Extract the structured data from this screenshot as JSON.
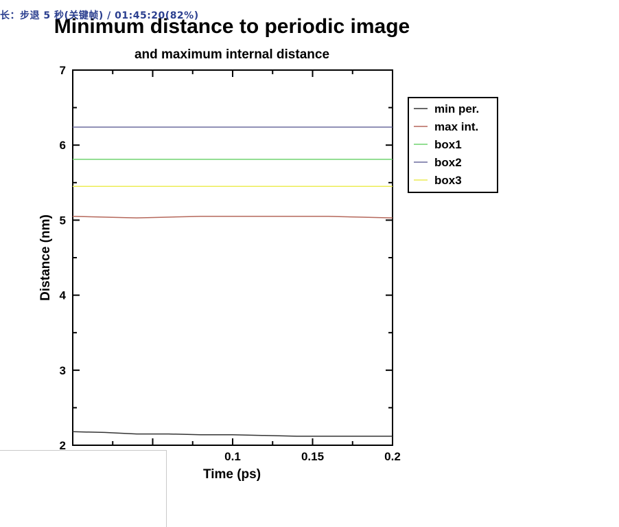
{
  "overlay": {
    "text": "长：步退 5 秒(关键帧) / 01:45:20(82%)"
  },
  "chart_data": {
    "type": "line",
    "title": "Minimum distance to periodic image",
    "subtitle": "and maximum internal distance",
    "xlabel": "Time (ps)",
    "ylabel": "Distance (nm)",
    "xlim": [
      0,
      0.2
    ],
    "ylim": [
      2,
      7
    ],
    "x_ticks": [
      0.1,
      0.15,
      0.2
    ],
    "x_tick_labels": [
      "0.1",
      "0.15",
      "0.2"
    ],
    "y_ticks": [
      2,
      3,
      4,
      5,
      6,
      7
    ],
    "y_tick_labels": [
      "2",
      "3",
      "4",
      "5",
      "6",
      "7"
    ],
    "grid": false,
    "legend_position": "right",
    "series": [
      {
        "name": "min per.",
        "color": "#333333",
        "x": [
          0,
          0.02,
          0.04,
          0.06,
          0.08,
          0.1,
          0.12,
          0.14,
          0.16,
          0.18,
          0.2
        ],
        "y": [
          2.18,
          2.17,
          2.15,
          2.15,
          2.14,
          2.14,
          2.13,
          2.12,
          2.12,
          2.12,
          2.12
        ]
      },
      {
        "name": "max int.",
        "color": "#b5675a",
        "x": [
          0,
          0.02,
          0.04,
          0.06,
          0.08,
          0.1,
          0.12,
          0.14,
          0.16,
          0.18,
          0.2
        ],
        "y": [
          5.05,
          5.04,
          5.03,
          5.04,
          5.05,
          5.05,
          5.05,
          5.05,
          5.05,
          5.04,
          5.03
        ]
      },
      {
        "name": "box1",
        "color": "#6fd36f",
        "x": [
          0,
          0.2
        ],
        "y": [
          5.81,
          5.81
        ]
      },
      {
        "name": "box2",
        "color": "#6b6b9e",
        "x": [
          0,
          0.2
        ],
        "y": [
          6.24,
          6.24
        ]
      },
      {
        "name": "box3",
        "color": "#ecec55",
        "x": [
          0,
          0.2
        ],
        "y": [
          5.45,
          5.45
        ]
      }
    ]
  }
}
